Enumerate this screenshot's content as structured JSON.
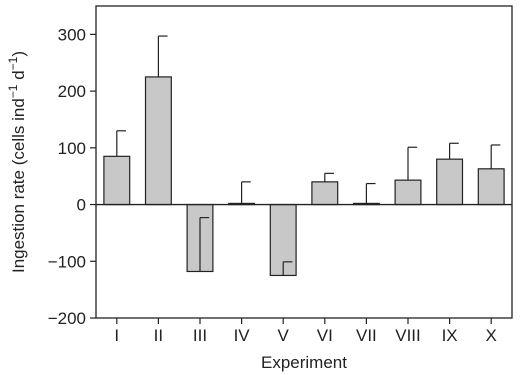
{
  "chart_data": {
    "type": "bar",
    "title": "",
    "xlabel": "Experiment",
    "ylabel": "Ingestion rate (cells ind",
    "ylabel_sup1": "−1",
    "ylabel_mid": " d",
    "ylabel_sup2": "−1",
    "ylabel_end": ")",
    "ylim": [
      -200,
      350
    ],
    "yticks": [
      -200,
      -100,
      0,
      100,
      200,
      300
    ],
    "ytick_labels": [
      "−200",
      "−100",
      "0",
      "100",
      "200",
      "300"
    ],
    "categories": [
      "I",
      "II",
      "III",
      "IV",
      "V",
      "VI",
      "VII",
      "VIII",
      "IX",
      "X"
    ],
    "values": [
      85,
      225,
      -118,
      2,
      -125,
      40,
      2,
      43,
      80,
      63
    ],
    "error_plus": [
      45,
      72,
      95,
      38,
      24,
      15,
      35,
      58,
      28,
      42
    ],
    "error_direction": [
      "up",
      "up",
      "up",
      "up",
      "up",
      "up",
      "up",
      "up",
      "up",
      "up"
    ],
    "bar_color": "#c8c8c8",
    "edge_color": "#222222",
    "grid": false,
    "legend": "none"
  }
}
